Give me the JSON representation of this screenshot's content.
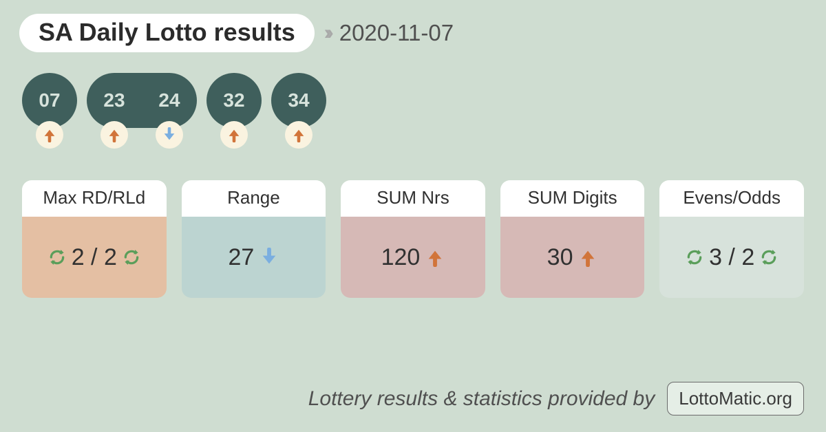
{
  "colors": {
    "page_bg": "#cfddd1",
    "title_text": "#2b2b2b",
    "chevron": "#a9a9a9",
    "date_text": "#505050",
    "ball_bg": "#3f5f5c",
    "ball_text": "#d7e3dc",
    "chip_bg": "#faf3e0",
    "arrow_up": "#d1743a",
    "arrow_down": "#7aaee0",
    "refresh_green": "#5a9e5a",
    "card_head_bg": "#ffffff",
    "card_head_text": "#313131",
    "card_body_text": "#313131",
    "card1_bg": "#e4bfa3",
    "card2_bg": "#bcd4d1",
    "card3_bg": "#d6b9b6",
    "card4_bg": "#d6b9b6",
    "card5_bg": "#d7e2db",
    "footer_text": "#505050",
    "badge_border": "#6a6a6a",
    "badge_bg": "#e5eee6",
    "badge_text": "#3a3a3a"
  },
  "header": {
    "title": "SA Daily Lotto results",
    "date": "2020-11-07"
  },
  "balls": [
    {
      "number": "07",
      "trend": "up",
      "join_right": false,
      "join_left": false
    },
    {
      "number": "23",
      "trend": "up",
      "join_right": true,
      "join_left": false
    },
    {
      "number": "24",
      "trend": "down",
      "join_right": false,
      "join_left": true
    },
    {
      "number": "32",
      "trend": "up",
      "join_right": false,
      "join_left": false
    },
    {
      "number": "34",
      "trend": "up",
      "join_right": false,
      "join_left": false
    }
  ],
  "stats": [
    {
      "label": "Max RD/RLd",
      "body_bg_key": "card1_bg",
      "parts": [
        {
          "type": "refresh"
        },
        {
          "type": "text",
          "value": "2 / 2"
        },
        {
          "type": "refresh"
        }
      ]
    },
    {
      "label": "Range",
      "body_bg_key": "card2_bg",
      "parts": [
        {
          "type": "text",
          "value": "27"
        },
        {
          "type": "arrow",
          "dir": "down"
        }
      ]
    },
    {
      "label": "SUM Nrs",
      "body_bg_key": "card3_bg",
      "parts": [
        {
          "type": "text",
          "value": "120"
        },
        {
          "type": "arrow",
          "dir": "up"
        }
      ]
    },
    {
      "label": "SUM Digits",
      "body_bg_key": "card4_bg",
      "parts": [
        {
          "type": "text",
          "value": "30"
        },
        {
          "type": "arrow",
          "dir": "up"
        }
      ]
    },
    {
      "label": "Evens/Odds",
      "body_bg_key": "card5_bg",
      "parts": [
        {
          "type": "refresh"
        },
        {
          "type": "text",
          "value": "3 / 2"
        },
        {
          "type": "refresh"
        }
      ]
    }
  ],
  "footer": {
    "text": "Lottery results & statistics provided by",
    "badge": "LottoMatic.org"
  }
}
